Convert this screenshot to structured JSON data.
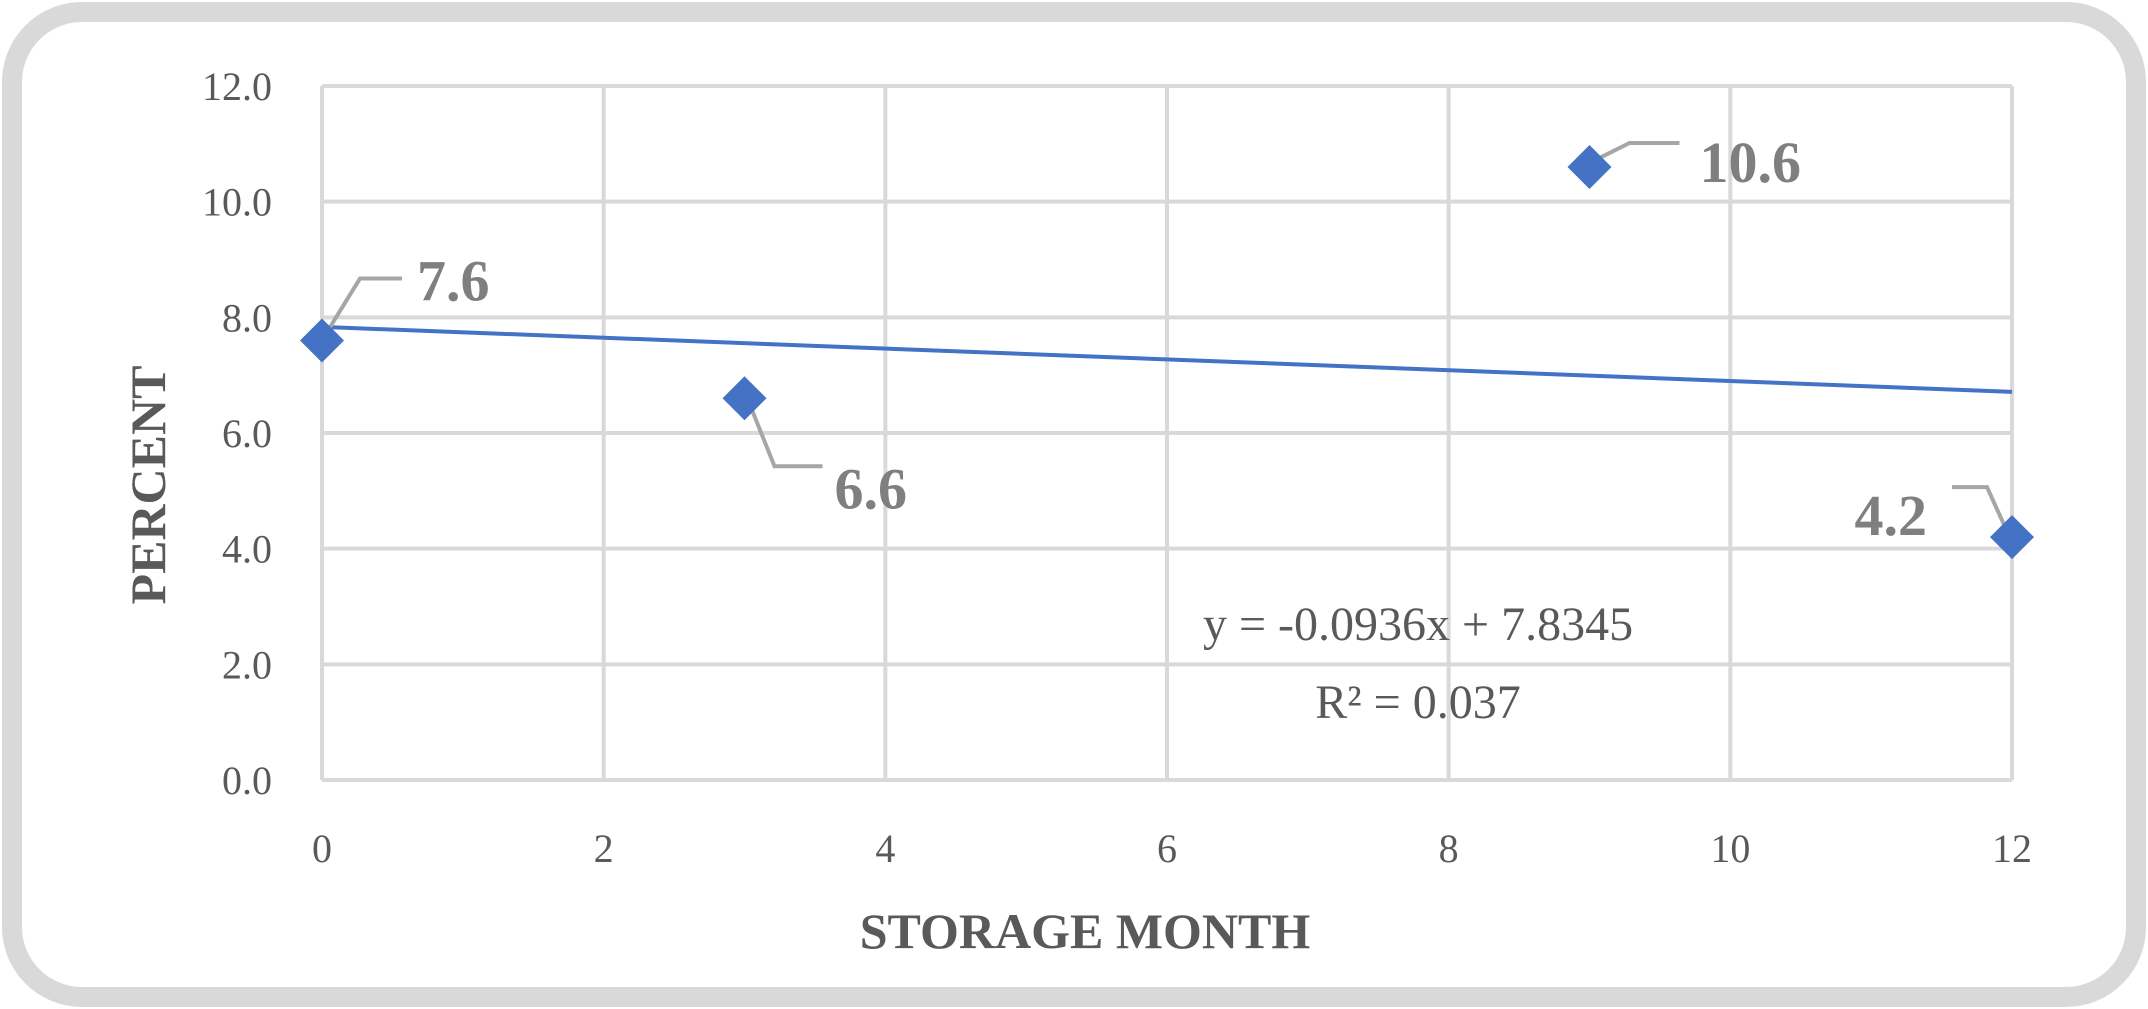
{
  "chart_data": {
    "type": "scatter",
    "title": "",
    "xlabel": "STORAGE MONTH",
    "ylabel": "PERCENT",
    "xlim": [
      0,
      12
    ],
    "ylim": [
      0,
      12
    ],
    "x_ticks": [
      "0",
      "2",
      "4",
      "6",
      "8",
      "10",
      "12"
    ],
    "y_ticks": [
      "0.0",
      "2.0",
      "4.0",
      "6.0",
      "8.0",
      "10.0",
      "12.0"
    ],
    "grid": true,
    "legend": "none",
    "series": [
      {
        "points": [
          {
            "x": 0,
            "y": 7.6,
            "label": "7.6"
          },
          {
            "x": 3,
            "y": 6.6,
            "label": "6.6"
          },
          {
            "x": 9,
            "y": 10.6,
            "label": "10.6"
          },
          {
            "x": 12,
            "y": 4.2,
            "label": "4.2"
          }
        ],
        "marker": "diamond",
        "color": "#4472c4"
      }
    ],
    "trendline": {
      "type": "linear",
      "slope": -0.0936,
      "intercept": 7.8345,
      "color": "#4472c4",
      "equation": "y = -0.0936x + 7.8345",
      "r_squared": "R² = 0.037"
    },
    "colors": {
      "grid": "#d9d9d9",
      "frame_border": "#d9d9d9",
      "label_text": "#7f7f7f",
      "leader_line": "#a6a6a6"
    }
  }
}
